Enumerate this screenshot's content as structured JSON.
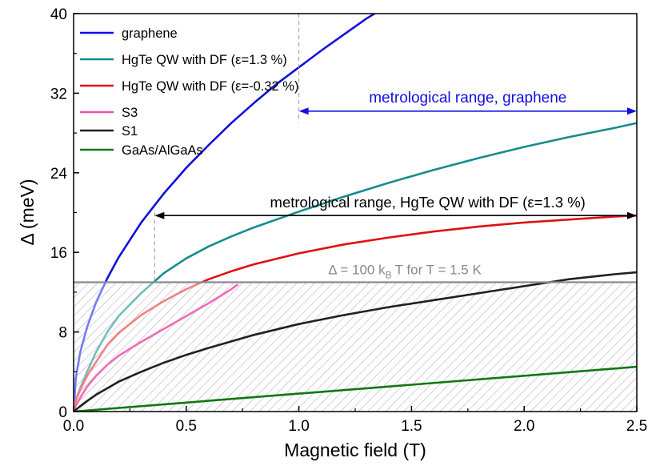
{
  "chart_data": {
    "type": "line",
    "xlabel": "Magnetic field (T)",
    "ylabel": "Δ (meV)",
    "xlim": [
      0,
      2.5
    ],
    "ylim": [
      0,
      40
    ],
    "xticks": [
      "0.0",
      "0.5",
      "1.0",
      "1.5",
      "2.0",
      "2.5"
    ],
    "yticks": [
      "0",
      "8",
      "16",
      "24",
      "32",
      "40"
    ],
    "legend_position": "top-left",
    "series": [
      {
        "name": "graphene",
        "color": "#1010e0",
        "faded_color": "#7a7af0",
        "x": [
          0,
          0.01,
          0.03,
          0.06,
          0.1,
          0.15,
          0.2,
          0.3,
          0.4,
          0.5,
          0.6,
          0.7,
          0.8,
          0.9,
          1.0,
          1.1,
          1.2,
          1.3,
          1.35
        ],
        "y": [
          0,
          3.4,
          6.0,
          8.5,
          11.0,
          13.4,
          15.5,
          19.0,
          21.9,
          24.5,
          26.8,
          29.0,
          31.0,
          32.9,
          34.6,
          36.3,
          37.9,
          39.5,
          40.2
        ]
      },
      {
        "name": "HgTe QW with DF (ε=1.3 %)",
        "color": "#178c8c",
        "faded_color": "#74bcbc",
        "x": [
          0,
          0.01,
          0.03,
          0.06,
          0.1,
          0.15,
          0.2,
          0.3,
          0.4,
          0.5,
          0.6,
          0.7,
          0.8,
          1.0,
          1.2,
          1.4,
          1.6,
          1.8,
          2.0,
          2.2,
          2.4,
          2.5
        ],
        "y": [
          0,
          1.2,
          2.4,
          4.0,
          6.0,
          8.0,
          9.6,
          11.9,
          13.9,
          15.4,
          16.6,
          17.6,
          18.5,
          20.1,
          21.6,
          23.0,
          24.3,
          25.5,
          26.6,
          27.6,
          28.5,
          29.0
        ]
      },
      {
        "name": "HgTe QW with DF (ε=-0.32 %)",
        "color": "#e01010",
        "faded_color": "#f28282",
        "x": [
          0,
          0.01,
          0.03,
          0.06,
          0.1,
          0.15,
          0.2,
          0.3,
          0.4,
          0.5,
          0.6,
          0.7,
          0.8,
          1.0,
          1.2,
          1.4,
          1.6,
          1.8,
          2.0,
          2.2,
          2.4,
          2.5
        ],
        "y": [
          0,
          1.1,
          2.2,
          3.6,
          5.0,
          6.7,
          7.9,
          9.7,
          11.1,
          12.3,
          13.3,
          14.1,
          14.8,
          15.9,
          16.8,
          17.5,
          18.1,
          18.6,
          19.0,
          19.3,
          19.6,
          19.7
        ]
      },
      {
        "name": "S3",
        "color": "#f050a8",
        "faded_color": "#f26ab5",
        "x": [
          0,
          0.01,
          0.03,
          0.06,
          0.1,
          0.15,
          0.2,
          0.3,
          0.4,
          0.5,
          0.6,
          0.7,
          0.73
        ],
        "y": [
          0,
          0.6,
          1.4,
          2.5,
          3.6,
          4.7,
          5.6,
          7.0,
          8.3,
          9.6,
          10.9,
          12.3,
          12.8
        ]
      },
      {
        "name": "S1",
        "color": "#202020",
        "faded_color": "#202020",
        "x": [
          0,
          0.05,
          0.1,
          0.2,
          0.3,
          0.4,
          0.5,
          0.6,
          0.8,
          1.0,
          1.2,
          1.4,
          1.6,
          1.8,
          2.0,
          2.2,
          2.4,
          2.5
        ],
        "y": [
          0,
          0.9,
          1.7,
          3.0,
          4.0,
          4.9,
          5.7,
          6.4,
          7.7,
          8.8,
          9.7,
          10.5,
          11.2,
          11.9,
          12.6,
          13.3,
          13.8,
          14.0
        ]
      },
      {
        "name": "GaAs/AlGaAs",
        "color": "#107810",
        "faded_color": "#107810",
        "x": [
          0,
          0.5,
          1.0,
          1.5,
          2.0,
          2.5
        ],
        "y": [
          0,
          0.9,
          1.8,
          2.7,
          3.6,
          4.5
        ]
      }
    ],
    "threshold": {
      "y": 13.0,
      "label_main": "Δ = 100 k",
      "label_sub": "B",
      "label_rest": "T  for T = 1.5 K",
      "color": "#8a8a8a"
    },
    "annotations": {
      "graphene_range": {
        "text": "metrological range, graphene",
        "x_start": 1.0,
        "x_end": 2.5,
        "y": 30.2,
        "color": "#1010e0"
      },
      "hgte_range": {
        "text": "metrological range, HgTe QW with DF  (ε=1.3 %)",
        "x_start": 0.36,
        "x_end": 2.5,
        "y": 19.7,
        "color": "#000000"
      }
    }
  }
}
